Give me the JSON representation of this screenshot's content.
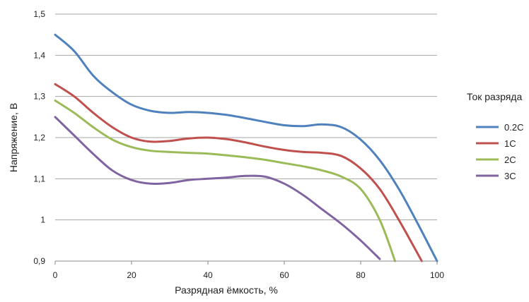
{
  "chart_data": {
    "type": "line",
    "xlabel": "Разрядная ёмкость, %",
    "ylabel": "Напряжение, В",
    "xlim": [
      0,
      100
    ],
    "ylim": [
      0.9,
      1.5
    ],
    "xticks": [
      0,
      20,
      40,
      60,
      80,
      100
    ],
    "xtick_labels": [
      "0",
      "20",
      "40",
      "60",
      "80",
      "100"
    ],
    "yticks": [
      0.9,
      1.0,
      1.1,
      1.2,
      1.3,
      1.4,
      1.5
    ],
    "ytick_labels": [
      "0,9",
      "1",
      "1,1",
      "1,2",
      "1,3",
      "1,4",
      "1,5"
    ],
    "grid": "horizontal",
    "legend_title": "Ток разряда",
    "legend_position": "right",
    "series": [
      {
        "name": "0.2C",
        "color": "#4f81bd",
        "x": [
          0,
          5,
          10,
          15,
          20,
          25,
          30,
          35,
          40,
          45,
          50,
          55,
          60,
          65,
          70,
          75,
          80,
          85,
          90,
          95,
          100
        ],
        "y": [
          1.45,
          1.41,
          1.35,
          1.31,
          1.28,
          1.265,
          1.26,
          1.262,
          1.26,
          1.255,
          1.247,
          1.238,
          1.23,
          1.228,
          1.232,
          1.225,
          1.195,
          1.145,
          1.075,
          0.99,
          0.9
        ]
      },
      {
        "name": "1C",
        "color": "#c0504d",
        "x": [
          0,
          5,
          10,
          15,
          20,
          25,
          30,
          35,
          40,
          45,
          50,
          55,
          60,
          65,
          70,
          75,
          80,
          85,
          90,
          96
        ],
        "y": [
          1.33,
          1.3,
          1.26,
          1.225,
          1.2,
          1.19,
          1.192,
          1.198,
          1.2,
          1.196,
          1.188,
          1.178,
          1.17,
          1.165,
          1.163,
          1.155,
          1.125,
          1.075,
          1.0,
          0.9
        ]
      },
      {
        "name": "2C",
        "color": "#9bbb59",
        "x": [
          0,
          5,
          10,
          15,
          20,
          25,
          30,
          35,
          40,
          45,
          50,
          55,
          60,
          65,
          70,
          75,
          80,
          85,
          89
        ],
        "y": [
          1.29,
          1.26,
          1.225,
          1.195,
          1.177,
          1.168,
          1.165,
          1.163,
          1.161,
          1.157,
          1.152,
          1.146,
          1.138,
          1.13,
          1.12,
          1.105,
          1.075,
          1.0,
          0.9
        ]
      },
      {
        "name": "3C",
        "color": "#8064a2",
        "x": [
          0,
          5,
          10,
          15,
          20,
          25,
          30,
          35,
          40,
          45,
          50,
          55,
          60,
          65,
          70,
          75,
          80,
          85
        ],
        "y": [
          1.25,
          1.205,
          1.16,
          1.12,
          1.097,
          1.088,
          1.09,
          1.097,
          1.1,
          1.103,
          1.107,
          1.105,
          1.088,
          1.06,
          1.025,
          0.99,
          0.95,
          0.905
        ]
      }
    ]
  }
}
